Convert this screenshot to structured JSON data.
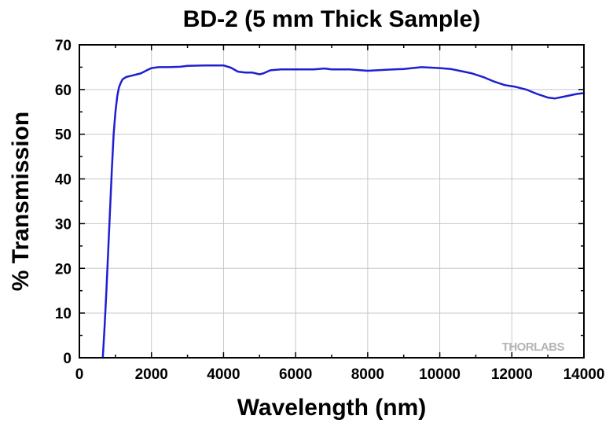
{
  "chart_data": {
    "type": "line",
    "title": "BD-2 (5 mm Thick Sample)",
    "xlabel": "Wavelength (nm)",
    "ylabel": "% Transmission",
    "xlim": [
      0,
      14000
    ],
    "ylim": [
      0,
      70
    ],
    "x_ticks": [
      0,
      2000,
      4000,
      6000,
      8000,
      10000,
      12000,
      14000
    ],
    "y_ticks": [
      0,
      10,
      20,
      30,
      40,
      50,
      60,
      70
    ],
    "x_minor_step": 1000,
    "y_minor_step": 5,
    "grid": true,
    "legend": "none",
    "watermark": "THORLABS",
    "colors": {
      "series": "#1f1fd2",
      "grid": "#c8c8c8"
    },
    "series": [
      {
        "color": "#1f1fd2",
        "x": [
          650,
          700,
          750,
          800,
          850,
          900,
          950,
          1000,
          1050,
          1100,
          1150,
          1200,
          1300,
          1400,
          1500,
          1600,
          1700,
          1800,
          1900,
          2000,
          2200,
          2500,
          2800,
          3000,
          3500,
          4000,
          4200,
          4400,
          4600,
          4800,
          5000,
          5100,
          5300,
          5600,
          6000,
          6500,
          6800,
          7000,
          7500,
          8000,
          8500,
          9000,
          9500,
          10000,
          10300,
          10600,
          10900,
          11200,
          11500,
          11800,
          12100,
          12400,
          12700,
          13000,
          13200,
          13500,
          13800,
          14000
        ],
        "y": [
          0,
          7,
          15,
          24,
          33,
          42,
          50,
          55,
          58.5,
          60.5,
          61.5,
          62.3,
          62.8,
          63.0,
          63.2,
          63.4,
          63.6,
          64.0,
          64.4,
          64.8,
          65.0,
          65.0,
          65.1,
          65.3,
          65.4,
          65.4,
          64.9,
          64.0,
          63.8,
          63.8,
          63.4,
          63.6,
          64.3,
          64.5,
          64.5,
          64.5,
          64.7,
          64.5,
          64.5,
          64.2,
          64.4,
          64.6,
          65.0,
          64.8,
          64.6,
          64.1,
          63.6,
          62.8,
          61.8,
          61.0,
          60.6,
          60.0,
          59.0,
          58.2,
          58.0,
          58.5,
          59.0,
          59.2
        ]
      }
    ]
  }
}
